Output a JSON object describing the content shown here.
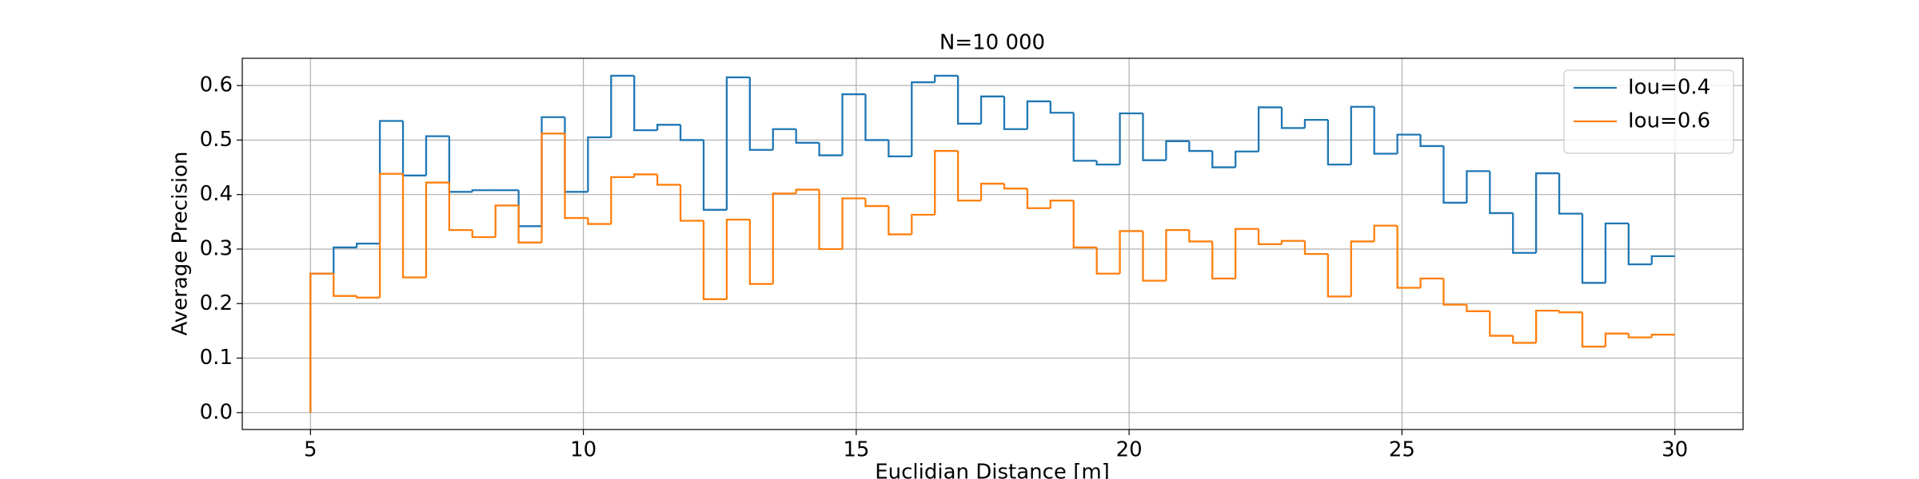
{
  "chart_data": {
    "type": "line",
    "step": "pre",
    "title": "N=10 000",
    "xlabel": "Euclidian Distance [m]",
    "ylabel": "Average Precision",
    "x": [
      5,
      5.4237,
      5.8475,
      6.2712,
      6.6949,
      7.1186,
      7.5424,
      7.9661,
      8.3898,
      8.8136,
      9.2373,
      9.661,
      10.0847,
      10.5085,
      10.9322,
      11.3559,
      11.7797,
      12.2034,
      12.6271,
      13.0508,
      13.4746,
      13.8983,
      14.322,
      14.7458,
      15.1695,
      15.5932,
      16.0169,
      16.4407,
      16.8644,
      17.2881,
      17.7119,
      18.1356,
      18.5593,
      18.9831,
      19.4068,
      19.8305,
      20.2542,
      20.678,
      21.1017,
      21.5254,
      21.9492,
      22.3729,
      22.7966,
      23.2203,
      23.6441,
      24.0678,
      24.4915,
      24.9153,
      25.339,
      25.7627,
      26.1864,
      26.6102,
      27.0339,
      27.4576,
      27.8814,
      28.3051,
      28.7288,
      29.1525,
      29.5763,
      30
    ],
    "series": [
      {
        "name": "Iou=0.4",
        "color": "#1f77b4",
        "values": [
          0,
          0.255,
          0.303,
          0.31,
          0.535,
          0.435,
          0.507,
          0.405,
          0.408,
          0.408,
          0.342,
          0.542,
          0.405,
          0.505,
          0.618,
          0.518,
          0.528,
          0.5,
          0.372,
          0.615,
          0.482,
          0.52,
          0.495,
          0.472,
          0.584,
          0.5,
          0.47,
          0.606,
          0.618,
          0.53,
          0.58,
          0.52,
          0.571,
          0.55,
          0.462,
          0.455,
          0.549,
          0.463,
          0.498,
          0.48,
          0.45,
          0.479,
          0.56,
          0.522,
          0.537,
          0.455,
          0.561,
          0.475,
          0.51,
          0.489,
          0.385,
          0.443,
          0.366,
          0.293,
          0.439,
          0.365,
          0.238,
          0.347,
          0.272,
          0.287
        ]
      },
      {
        "name": "Iou=0.6",
        "color": "#ff7f0e",
        "values": [
          0,
          0.255,
          0.214,
          0.211,
          0.438,
          0.248,
          0.422,
          0.335,
          0.322,
          0.38,
          0.312,
          0.512,
          0.357,
          0.346,
          0.432,
          0.437,
          0.418,
          0.352,
          0.208,
          0.354,
          0.236,
          0.402,
          0.409,
          0.3,
          0.393,
          0.379,
          0.327,
          0.363,
          0.48,
          0.389,
          0.42,
          0.411,
          0.375,
          0.389,
          0.303,
          0.255,
          0.333,
          0.242,
          0.335,
          0.314,
          0.246,
          0.337,
          0.309,
          0.315,
          0.291,
          0.213,
          0.314,
          0.343,
          0.229,
          0.246,
          0.198,
          0.186,
          0.141,
          0.128,
          0.187,
          0.184,
          0.121,
          0.145,
          0.138,
          0.143
        ]
      }
    ],
    "xlim": [
      3.75,
      31.25
    ],
    "xticks": [
      5,
      10,
      15,
      20,
      25,
      30
    ],
    "ylim": [
      -0.031,
      0.65
    ],
    "yticks": [
      {
        "value": 0,
        "label": "0.0"
      },
      0.1,
      0.2,
      0.3,
      0.4,
      0.5,
      0.6
    ],
    "grid": true,
    "legend": "upper right"
  }
}
